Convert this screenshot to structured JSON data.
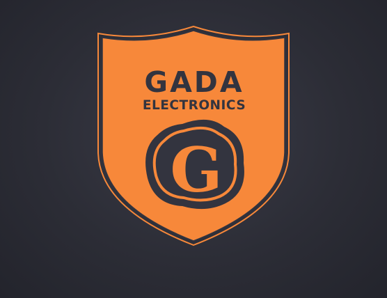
{
  "logo": {
    "brand_name": "GADA",
    "tagline": "ELECTRONICS",
    "monogram": "G"
  },
  "colors": {
    "background": "#2c2d36",
    "shield_fill": "#f7883a",
    "shield_outline": "#f7883a",
    "dark_ink": "#33343f"
  }
}
